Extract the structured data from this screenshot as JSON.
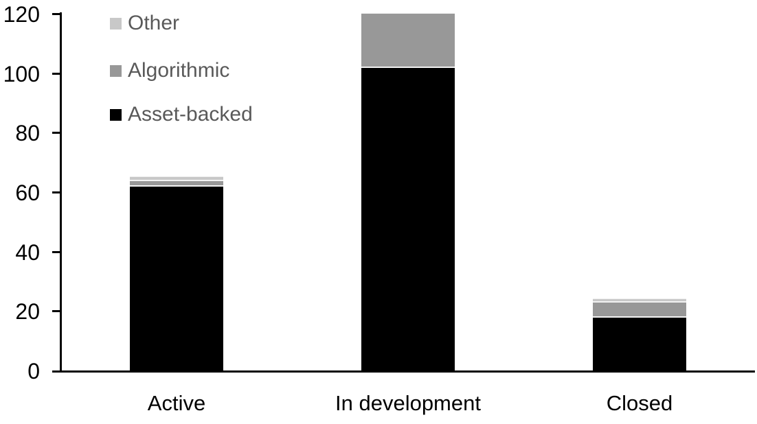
{
  "chart_data": {
    "type": "bar",
    "stacked": true,
    "title": "",
    "categories": [
      "Active",
      "In development",
      "Closed"
    ],
    "series": [
      {
        "name": "Asset-backed",
        "color": "#000000",
        "values": [
          62,
          102,
          18
        ]
      },
      {
        "name": "Algorithmic",
        "color": "#989898",
        "values": [
          2,
          18,
          5
        ]
      },
      {
        "name": "Other",
        "color": "#c8c8c8",
        "values": [
          1,
          0,
          1
        ]
      }
    ],
    "stack_totals": [
      65,
      120,
      24
    ],
    "yticks": [
      "0",
      "20",
      "40",
      "60",
      "80",
      "100",
      "120"
    ],
    "ylim": [
      0,
      120
    ],
    "grid": false,
    "axis_color": "#000000",
    "legend": {
      "position": "top-left",
      "order_top_to_bottom": [
        "Other",
        "Algorithmic",
        "Asset-backed"
      ],
      "text_color": "#595959"
    }
  }
}
